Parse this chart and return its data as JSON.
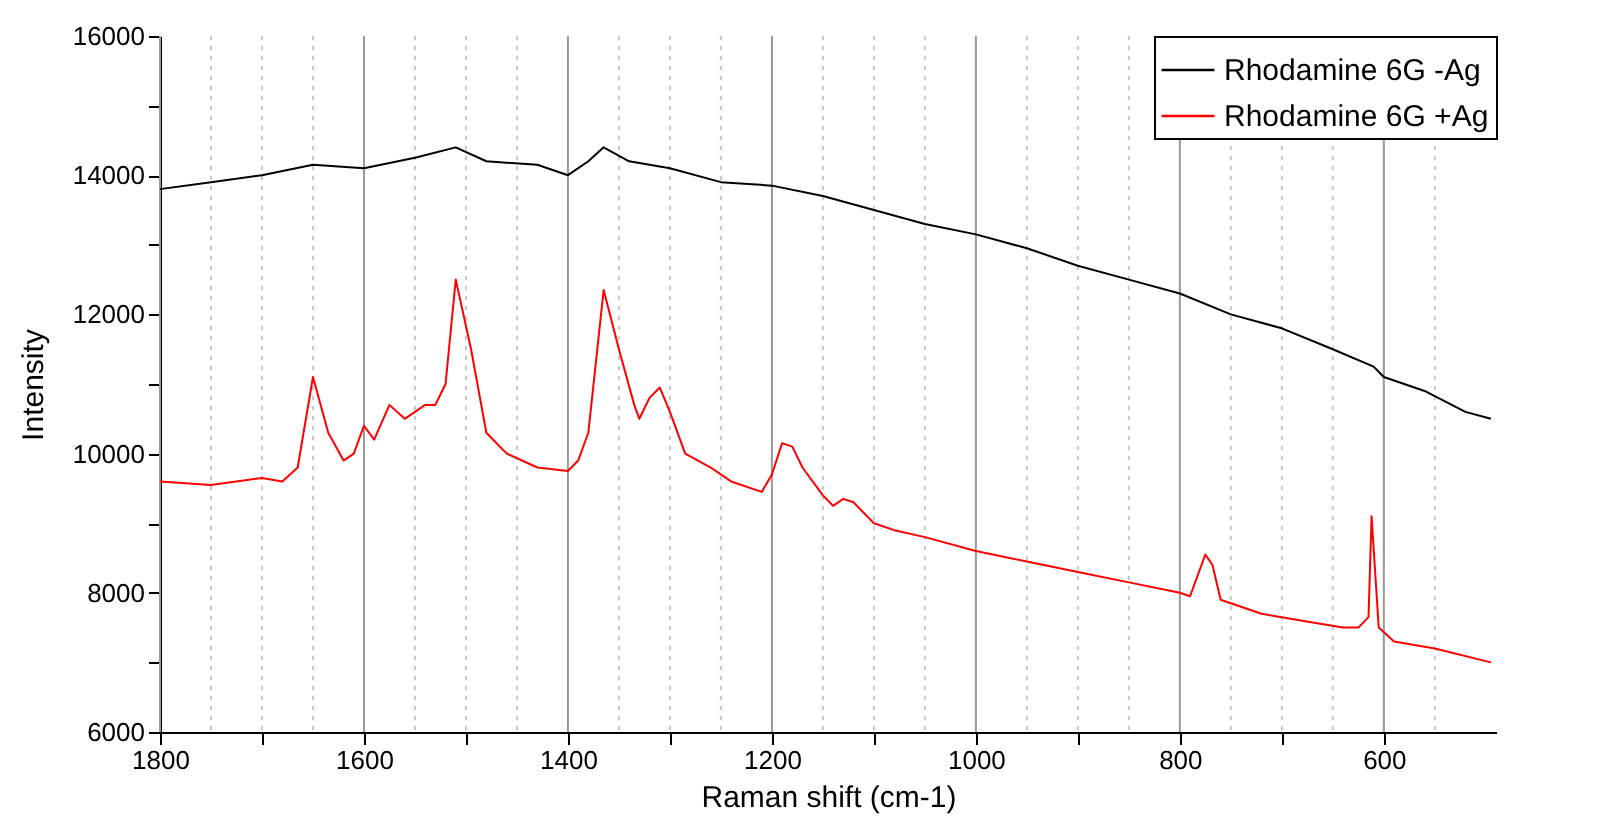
{
  "chart_data": {
    "type": "line",
    "xlabel": "Raman shift (cm-1)",
    "ylabel": "Intensity",
    "xlim": [
      1800,
      490
    ],
    "ylim": [
      6000,
      16000
    ],
    "xticks": [
      1800,
      {
        "value": 1750,
        "label": null
      },
      {
        "value": 1700,
        "label": null
      },
      {
        "value": 1650,
        "label": null
      },
      1600,
      {
        "value": 1550,
        "label": null
      },
      {
        "value": 1500,
        "label": null
      },
      {
        "value": 1450,
        "label": null
      },
      1400,
      {
        "value": 1350,
        "label": null
      },
      {
        "value": 1300,
        "label": null
      },
      {
        "value": 1250,
        "label": null
      },
      1200,
      {
        "value": 1150,
        "label": null
      },
      {
        "value": 1100,
        "label": null
      },
      {
        "value": 1050,
        "label": null
      },
      1000,
      {
        "value": 950,
        "label": null
      },
      {
        "value": 900,
        "label": null
      },
      {
        "value": 850,
        "label": null
      },
      800,
      {
        "value": 750,
        "label": null
      },
      {
        "value": 700,
        "label": null
      },
      {
        "value": 650,
        "label": null
      },
      600,
      {
        "value": 550,
        "label": null
      }
    ],
    "yticks": [
      6000,
      {
        "value": 7000,
        "label": null
      },
      8000,
      {
        "value": 9000,
        "label": null
      },
      10000,
      {
        "value": 11000,
        "label": null
      },
      12000,
      {
        "value": 13000,
        "label": null
      },
      14000,
      {
        "value": 15000,
        "label": null
      },
      16000
    ],
    "grid": "x",
    "legend": "top right",
    "marker": "none",
    "line_style": "solid",
    "series": [
      {
        "name": "Rhodamine 6G -Ag",
        "color": "#000000",
        "x": [
          1800,
          1750,
          1700,
          1650,
          1600,
          1550,
          1510,
          1480,
          1430,
          1400,
          1380,
          1365,
          1340,
          1300,
          1250,
          1200,
          1150,
          1100,
          1050,
          1000,
          950,
          900,
          850,
          800,
          750,
          700,
          650,
          610,
          600,
          560,
          520,
          495
        ],
        "values": [
          13800,
          13900,
          14000,
          14150,
          14100,
          14250,
          14400,
          14200,
          14150,
          14000,
          14200,
          14400,
          14200,
          14100,
          13900,
          13850,
          13700,
          13500,
          13300,
          13150,
          12950,
          12700,
          12500,
          12300,
          12000,
          11800,
          11500,
          11250,
          11100,
          10900,
          10600,
          10500
        ]
      },
      {
        "name": "Rhodamine 6G +Ag",
        "color": "#ff0000",
        "x": [
          1800,
          1750,
          1700,
          1680,
          1665,
          1650,
          1635,
          1620,
          1610,
          1600,
          1590,
          1575,
          1560,
          1540,
          1530,
          1520,
          1510,
          1495,
          1480,
          1460,
          1430,
          1400,
          1390,
          1380,
          1365,
          1350,
          1335,
          1330,
          1320,
          1310,
          1300,
          1285,
          1260,
          1240,
          1210,
          1200,
          1190,
          1180,
          1170,
          1150,
          1140,
          1130,
          1120,
          1100,
          1080,
          1050,
          1000,
          950,
          900,
          850,
          800,
          790,
          775,
          768,
          760,
          720,
          680,
          640,
          625,
          615,
          612,
          605,
          590,
          550,
          495
        ],
        "values": [
          9600,
          9550,
          9650,
          9600,
          9800,
          11100,
          10300,
          9900,
          10000,
          10400,
          10200,
          10700,
          10500,
          10700,
          10700,
          11000,
          12500,
          11500,
          10300,
          10000,
          9800,
          9750,
          9900,
          10300,
          12350,
          11500,
          10700,
          10500,
          10800,
          10950,
          10600,
          10000,
          9800,
          9600,
          9450,
          9700,
          10150,
          10100,
          9800,
          9400,
          9250,
          9350,
          9300,
          9000,
          8900,
          8800,
          8600,
          8450,
          8300,
          8150,
          8000,
          7950,
          8550,
          8400,
          7900,
          7700,
          7600,
          7500,
          7500,
          7650,
          9100,
          7500,
          7300,
          7200,
          7000
        ]
      }
    ]
  }
}
